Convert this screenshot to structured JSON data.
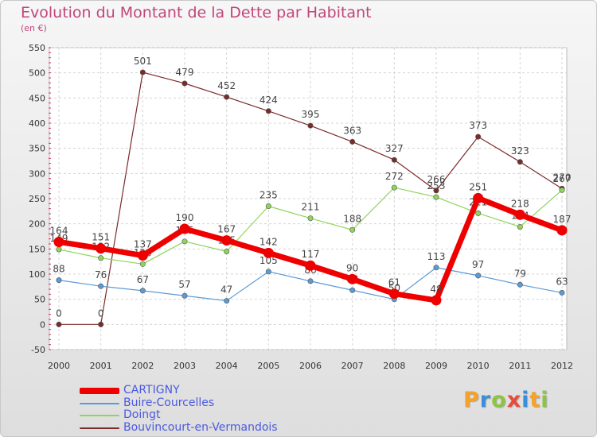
{
  "title": "Evolution du Montant de la Dette par Habitant",
  "subtitle": "(en €)",
  "brand": {
    "text": "Proxiti",
    "letters": [
      {
        "ch": "P",
        "color": "#f6a12a"
      },
      {
        "ch": "r",
        "color": "#3a8fd8"
      },
      {
        "ch": "o",
        "color": "#8cc63f"
      },
      {
        "ch": "x",
        "color": "#e84b3c"
      },
      {
        "ch": "i",
        "color": "#3a8fd8"
      },
      {
        "ch": "t",
        "color": "#f6a12a"
      },
      {
        "ch": "i",
        "color": "#8cc63f"
      }
    ]
  },
  "chart_data": {
    "type": "line",
    "title": "Evolution du Montant de la Dette par Habitant",
    "subtitle": "(en €)",
    "x": [
      "2000",
      "2001",
      "2002",
      "2003",
      "2004",
      "2005",
      "2006",
      "2007",
      "2008",
      "2009",
      "2010",
      "2011",
      "2012"
    ],
    "ylim": [
      -50,
      550
    ],
    "yticks": [
      -50,
      0,
      50,
      100,
      150,
      200,
      250,
      300,
      350,
      400,
      450,
      500,
      550
    ],
    "grid": true,
    "legend_position": "bottom-left",
    "series": [
      {
        "name": "CARTIGNY",
        "color": "#ee0000",
        "values": [
          164,
          151,
          137,
          190,
          167,
          142,
          117,
          90,
          61,
          48,
          251,
          218,
          187
        ]
      },
      {
        "name": "Buire-Courcelles",
        "color": "#5b9bd5",
        "values": [
          88,
          76,
          67,
          57,
          47,
          105,
          86,
          68,
          50,
          113,
          97,
          79,
          63
        ]
      },
      {
        "name": "Doingt",
        "color": "#8ed55b",
        "values": [
          149,
          132,
          120,
          165,
          145,
          235,
          211,
          188,
          272,
          253,
          221,
          194,
          267
        ]
      },
      {
        "name": "Bouvincourt-en-Vermandois",
        "color": "#7b2a2a",
        "values": [
          0,
          0,
          501,
          479,
          452,
          424,
          395,
          363,
          327,
          266,
          373,
          323,
          270
        ]
      }
    ]
  }
}
